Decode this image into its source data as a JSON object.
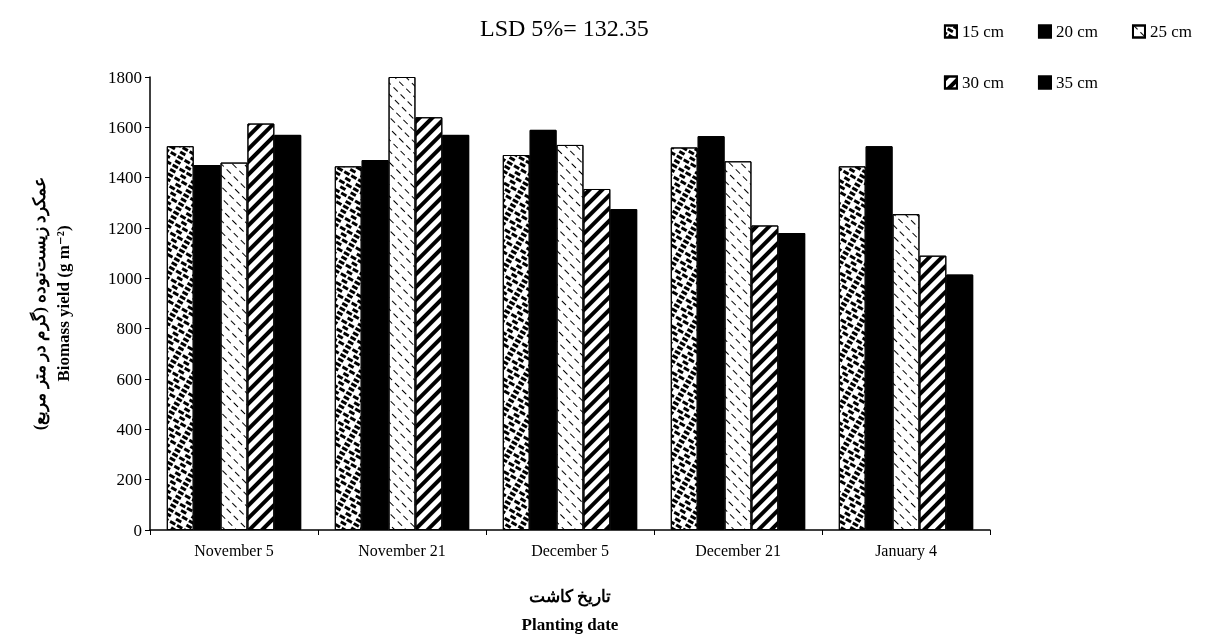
{
  "chart_data": {
    "type": "bar",
    "categories": [
      "November 5",
      "November 21",
      "December 5",
      "December 21",
      "January 4"
    ],
    "xlabel": "تاریخ کاشت\nPlanting date",
    "ylabel": "عمکرد زیست‌توده (گرم در متر مربع)\nBiomass yield (g m⁻²)",
    "annotations": [
      "LSD 5%= 132.35"
    ],
    "ylim": [
      0,
      1800
    ],
    "yticks": [
      0,
      200,
      400,
      600,
      800,
      1000,
      1200,
      1400,
      1600,
      1800
    ],
    "grid": false,
    "legend": "top right",
    "series": [
      {
        "name": "15 cm",
        "color": "#ffffff",
        "values": [
          1525,
          1445,
          1490,
          1520,
          1445
        ]
      },
      {
        "name": "20 cm",
        "color": "#000000",
        "values": [
          1450,
          1470,
          1590,
          1565,
          1525
        ]
      },
      {
        "name": "25 cm",
        "color": "#ffffff",
        "values": [
          1460,
          1800,
          1530,
          1465,
          1255
        ]
      },
      {
        "name": "30 cm",
        "color": "#ffffff",
        "values": [
          1615,
          1640,
          1355,
          1210,
          1090
        ]
      },
      {
        "name": "35 cm",
        "color": "#000000",
        "values": [
          1570,
          1570,
          1275,
          1180,
          1015
        ]
      }
    ]
  }
}
